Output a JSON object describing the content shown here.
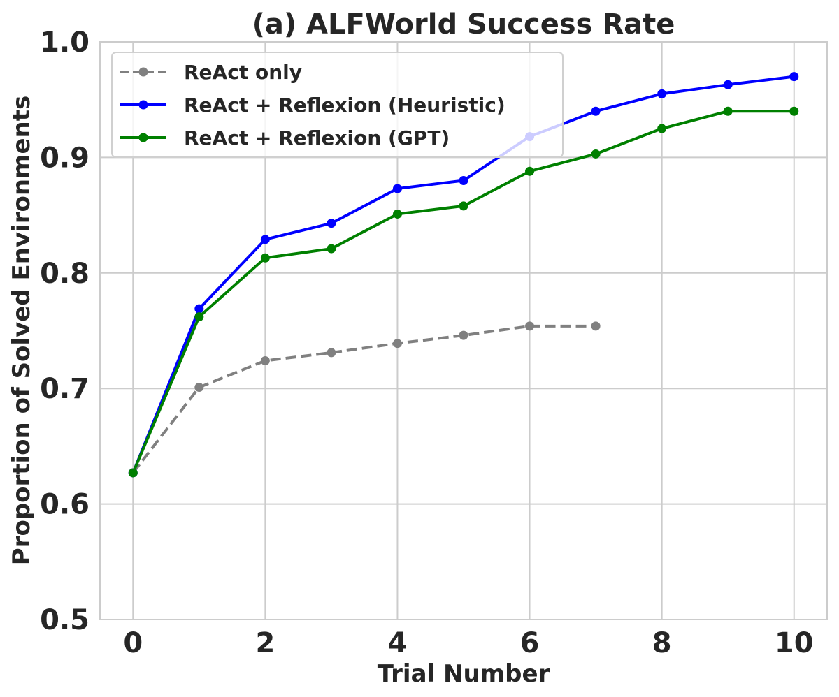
{
  "chart_data": {
    "type": "line",
    "title": "(a) ALFWorld Success Rate",
    "xlabel": "Trial Number",
    "ylabel": "Proportion of Solved Environments",
    "xlim": [
      -0.5,
      10.5
    ],
    "ylim": [
      0.5,
      1.0
    ],
    "xticks": [
      "0",
      "2",
      "4",
      "6",
      "8",
      "10"
    ],
    "yticks": [
      "0.5",
      "0.6",
      "0.7",
      "0.8",
      "0.9",
      "1.0"
    ],
    "grid": true,
    "legend_position": "top-left",
    "series": [
      {
        "name": "ReAct only",
        "color": "#808080",
        "dashed": true,
        "x": [
          0,
          1,
          2,
          3,
          4,
          5,
          6,
          7
        ],
        "y": [
          0.627,
          0.701,
          0.724,
          0.731,
          0.739,
          0.746,
          0.754,
          0.754
        ]
      },
      {
        "name": "ReAct + Reflexion (Heuristic)",
        "color": "#0000ff",
        "dashed": false,
        "x": [
          0,
          1,
          2,
          3,
          4,
          5,
          6,
          7,
          8,
          9,
          10
        ],
        "y": [
          0.627,
          0.769,
          0.829,
          0.843,
          0.873,
          0.88,
          0.918,
          0.94,
          0.955,
          0.963,
          0.97
        ]
      },
      {
        "name": "ReAct + Reflexion (GPT)",
        "color": "#008000",
        "dashed": false,
        "x": [
          0,
          1,
          2,
          3,
          4,
          5,
          6,
          7,
          8,
          9,
          10
        ],
        "y": [
          0.627,
          0.762,
          0.813,
          0.821,
          0.851,
          0.858,
          0.888,
          0.903,
          0.925,
          0.94,
          0.94
        ]
      }
    ]
  }
}
